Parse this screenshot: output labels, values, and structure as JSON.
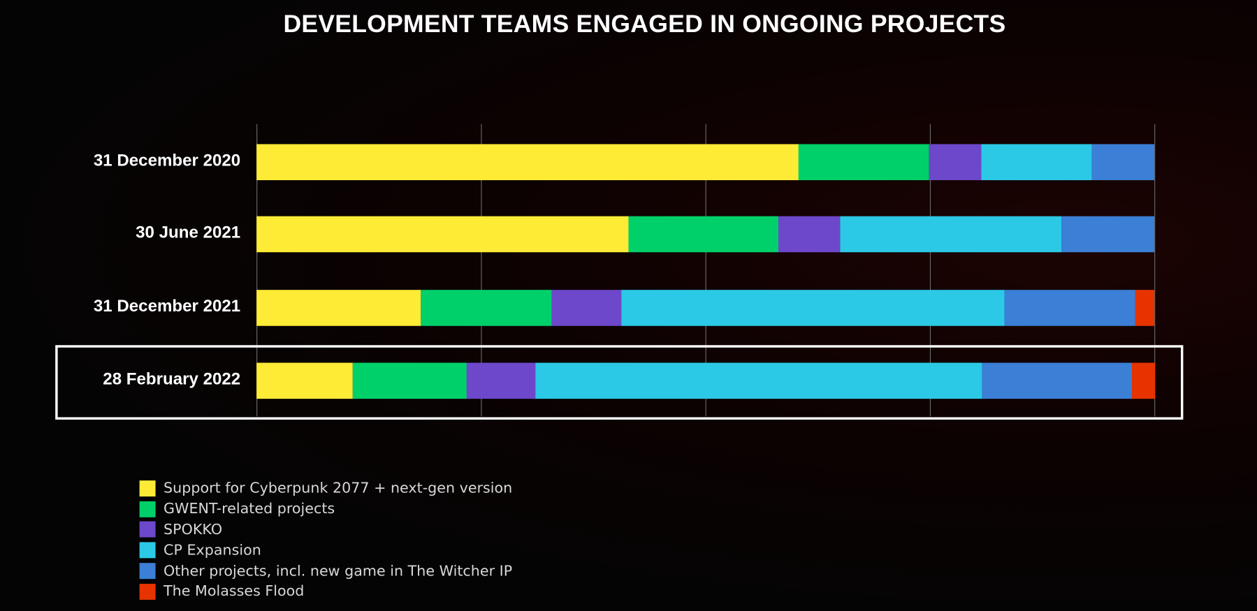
{
  "chart_data": {
    "type": "bar",
    "orientation": "horizontal",
    "stacked": true,
    "title": "DEVELOPMENT TEAMS ENGAGED IN ONGOING PROJECTS",
    "categories": [
      "31 December 2020",
      "30 June 2021",
      "31 December 2021",
      "28 February 2022"
    ],
    "highlighted_category": "28 February 2022",
    "xlim": [
      0,
      100
    ],
    "unit": "percent of development teams (estimated)",
    "grid": true,
    "legend_position": "bottom-left",
    "series": [
      {
        "name": "Support for Cyberpunk 2077 + next-gen version",
        "color": "#FDEB35",
        "values": [
          60.4,
          41.4,
          18.3,
          10.7
        ]
      },
      {
        "name": "GWENT-related projects",
        "color": "#00D06A",
        "values": [
          14.5,
          16.7,
          14.6,
          12.7
        ]
      },
      {
        "name": "SPOKKO",
        "color": "#6D48CB",
        "values": [
          5.8,
          6.9,
          7.7,
          7.7
        ]
      },
      {
        "name": "CP Expansion",
        "color": "#2BC9E6",
        "values": [
          12.3,
          24.6,
          42.7,
          49.7
        ]
      },
      {
        "name": "Other projects, incl. new game in The Witcher IP",
        "color": "#3B7FD6",
        "values": [
          7.0,
          10.4,
          14.6,
          16.7
        ]
      },
      {
        "name": "The Molasses Flood",
        "color": "#E63300",
        "values": [
          0,
          0,
          2.1,
          2.5
        ]
      }
    ]
  }
}
